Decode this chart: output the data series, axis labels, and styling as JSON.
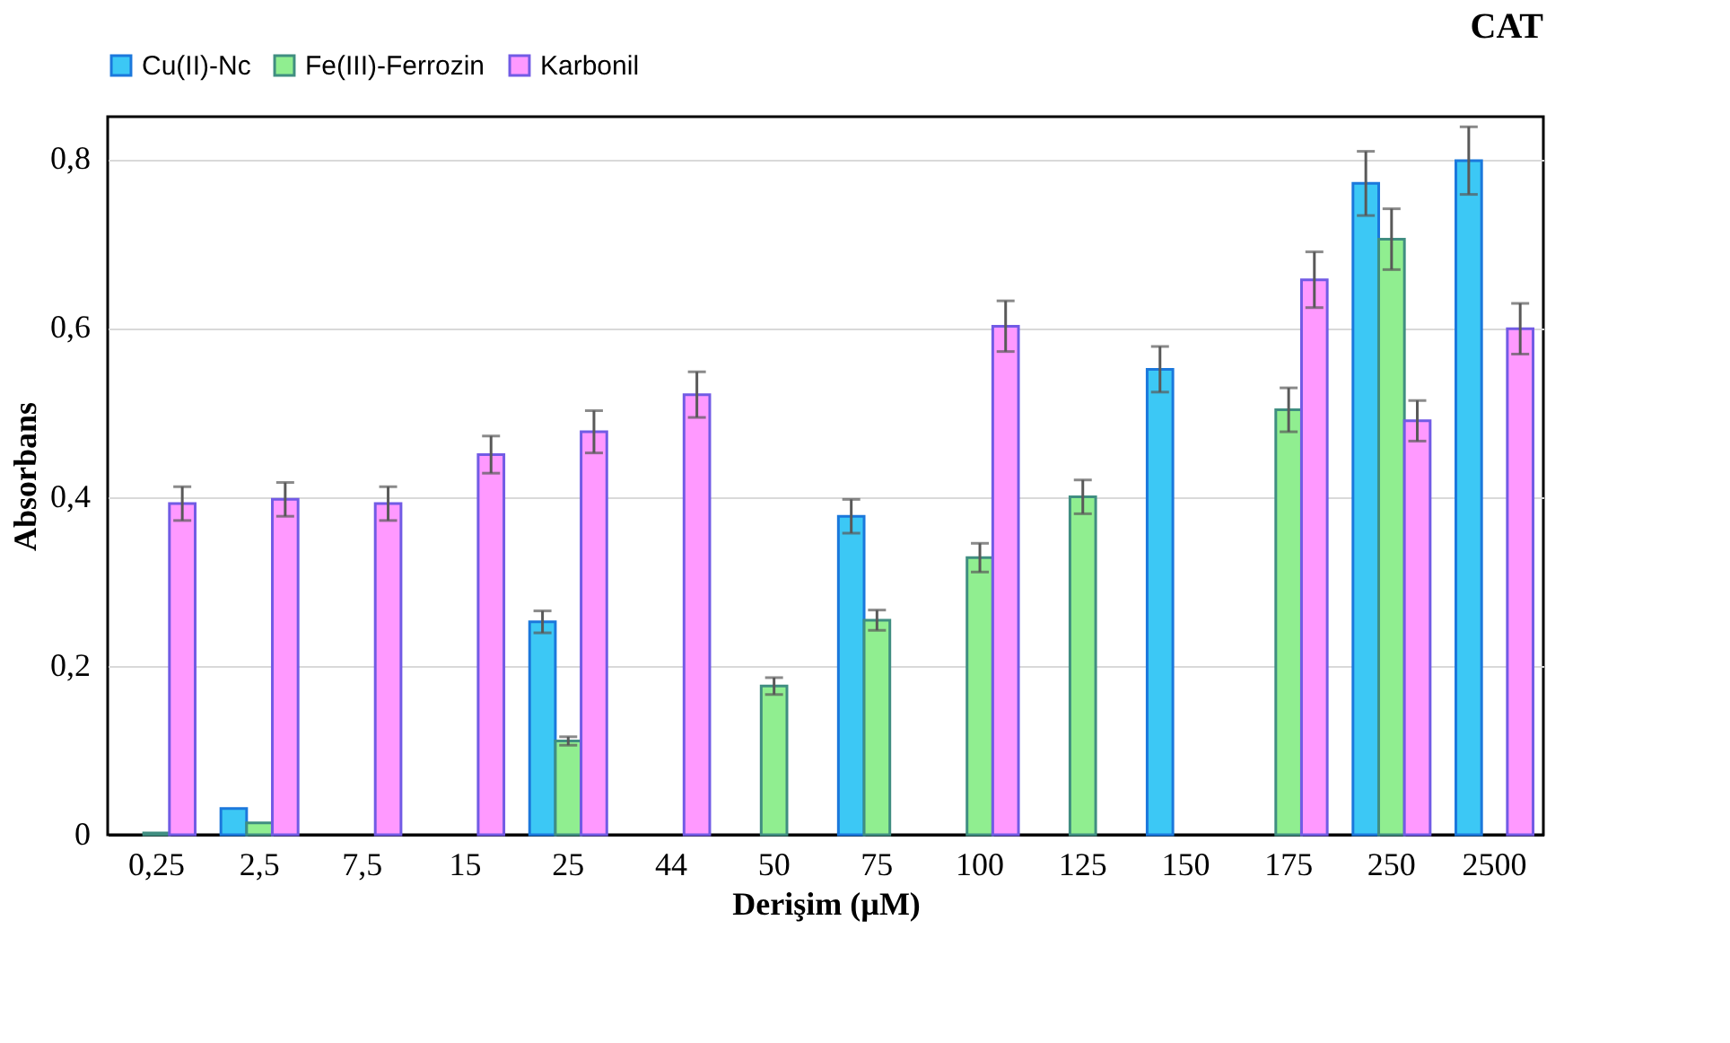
{
  "chart_data": {
    "type": "bar",
    "title": "CAT",
    "xlabel": "Derişim (µM)",
    "ylabel": "Absorbans",
    "categories": [
      "0,25",
      "2,5",
      "7,5",
      "15",
      "25",
      "44",
      "50",
      "75",
      "100",
      "125",
      "150",
      "175",
      "250",
      "2500"
    ],
    "series": [
      {
        "name": "Cu(II)-Nc",
        "color": "#3cc8f5",
        "values": [
          null,
          0.031,
          null,
          null,
          0.252,
          null,
          null,
          0.377,
          null,
          null,
          0.551,
          null,
          0.771,
          0.798
        ],
        "errors": [
          null,
          null,
          null,
          null,
          0.013,
          null,
          null,
          0.02,
          null,
          null,
          0.027,
          null,
          0.038,
          0.04
        ]
      },
      {
        "name": "Fe(III)-Ferrozin",
        "color": "#90ee90",
        "values": [
          0.002,
          0.014,
          null,
          null,
          0.111,
          null,
          0.176,
          0.254,
          0.328,
          0.4,
          null,
          0.503,
          0.705,
          null
        ],
        "errors": [
          null,
          null,
          null,
          null,
          0.005,
          null,
          0.01,
          0.012,
          0.017,
          0.02,
          null,
          0.026,
          0.036,
          null
        ]
      },
      {
        "name": "Karbonil",
        "color": "#ff99ff",
        "values": [
          0.392,
          0.397,
          0.392,
          0.45,
          0.477,
          0.521,
          null,
          null,
          0.602,
          null,
          null,
          0.657,
          0.49,
          0.599
        ],
        "errors": [
          0.02,
          0.02,
          0.02,
          0.022,
          0.025,
          0.027,
          null,
          null,
          0.03,
          null,
          null,
          0.033,
          0.024,
          0.03
        ]
      }
    ],
    "ylim": [
      0,
      0.85
    ],
    "yticks": [
      0,
      {
        "value": 0.2,
        "label": "0,2"
      },
      {
        "value": 0.4,
        "label": "0,4"
      },
      {
        "value": 0.6,
        "label": "0,6"
      },
      {
        "value": 0.8,
        "label": "0,8"
      }
    ],
    "grid": "y",
    "legend": "top left"
  }
}
